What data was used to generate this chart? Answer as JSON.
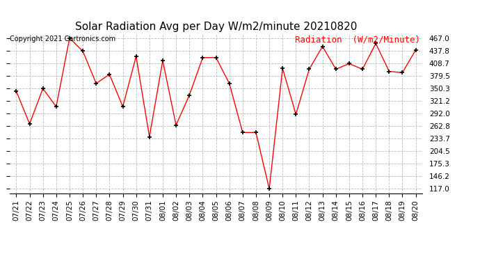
{
  "title": "Solar Radiation Avg per Day W/m2/minute 20210820",
  "copyright": "Copyright 2021 Cartronics.com",
  "legend_label": "Radiation  (W/m2/Minute)",
  "dates": [
    "07/21",
    "07/22",
    "07/23",
    "07/24",
    "07/25",
    "07/26",
    "07/27",
    "07/28",
    "07/29",
    "07/30",
    "07/31",
    "08/01",
    "08/02",
    "08/03",
    "08/04",
    "08/05",
    "08/06",
    "08/07",
    "08/08",
    "08/09",
    "08/10",
    "08/11",
    "08/12",
    "08/13",
    "08/14",
    "08/15",
    "08/16",
    "08/17",
    "08/18",
    "08/19",
    "08/20"
  ],
  "values": [
    344,
    268,
    350,
    308,
    467,
    437,
    362,
    383,
    308,
    425,
    238,
    415,
    265,
    335,
    422,
    422,
    362,
    248,
    248,
    117,
    397,
    290,
    395,
    448,
    395,
    408,
    395,
    455,
    390,
    387,
    440
  ],
  "y_ticks": [
    117.0,
    146.2,
    175.3,
    204.5,
    233.7,
    262.8,
    292.0,
    321.2,
    350.3,
    379.5,
    408.7,
    437.8,
    467.0
  ],
  "ylim": [
    107,
    477
  ],
  "line_color": "red",
  "marker_color": "black",
  "bg_color": "#ffffff",
  "grid_color": "#bbbbbb",
  "title_fontsize": 11,
  "copyright_fontsize": 7,
  "legend_fontsize": 9,
  "tick_fontsize": 7.5
}
